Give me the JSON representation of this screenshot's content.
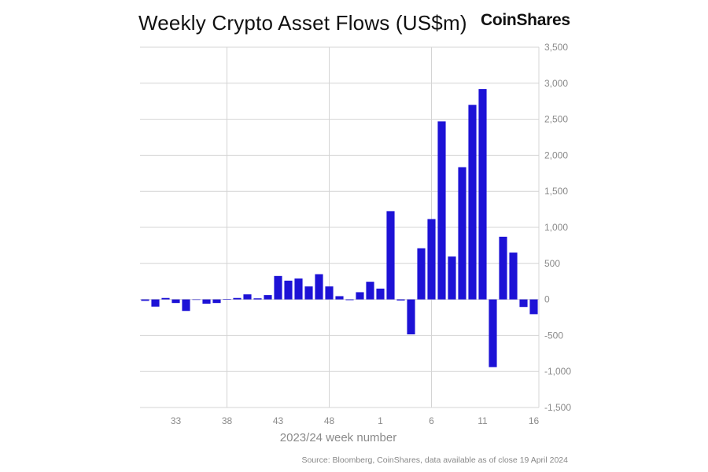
{
  "header": {
    "title": "Weekly Crypto Asset Flows (US$m)",
    "brand": "CoinShares"
  },
  "footer": {
    "source": "Source: Bloomberg, CoinShares, data available as of close 19 April 2024"
  },
  "colors": {
    "bar": "#1d12d6",
    "grid": "#d4d4d4",
    "tick_text": "#8a8a8a"
  },
  "chart_data": {
    "type": "bar",
    "title": "Weekly Crypto Asset Flows (US$m)",
    "xlabel": "2023/24 week number",
    "ylabel": "",
    "ylim": [
      -1500,
      3500
    ],
    "y_ticks": [
      3500,
      3000,
      2500,
      2000,
      1500,
      1000,
      500,
      0,
      -500,
      -1000,
      -1500
    ],
    "y_tick_labels": [
      "3,500",
      "3,000",
      "2,500",
      "2,000",
      "1,500",
      "1,000",
      "500",
      "0",
      "-500",
      "-1,000",
      "-1,500"
    ],
    "grid": true,
    "y_axis_position": "right",
    "x_tick_labels": [
      "33",
      "38",
      "43",
      "48",
      "1",
      "6",
      "11",
      "16"
    ],
    "categories": [
      "30",
      "31",
      "32",
      "33",
      "34",
      "35",
      "36",
      "37",
      "38",
      "39",
      "40",
      "41",
      "42",
      "43",
      "44",
      "45",
      "46",
      "47",
      "48",
      "49",
      "50",
      "51",
      "52",
      "1",
      "2",
      "3",
      "4",
      "5",
      "6",
      "7",
      "8",
      "9",
      "10",
      "11",
      "12",
      "13",
      "14",
      "15",
      "16"
    ],
    "values": [
      -20,
      -100,
      20,
      -50,
      -160,
      0,
      -60,
      -50,
      5,
      20,
      70,
      15,
      60,
      325,
      260,
      290,
      180,
      350,
      180,
      45,
      -10,
      100,
      245,
      150,
      1225,
      -15,
      -485,
      710,
      1115,
      2470,
      595,
      1835,
      2700,
      2920,
      -940,
      870,
      650,
      -105,
      -205
    ]
  }
}
